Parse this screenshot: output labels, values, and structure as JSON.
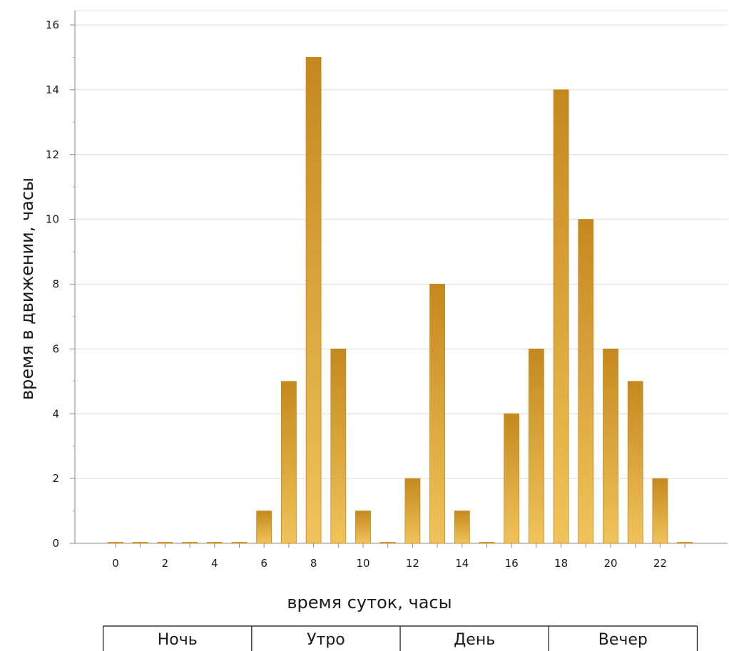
{
  "chart_data": {
    "type": "bar",
    "x": [
      0,
      1,
      2,
      3,
      4,
      5,
      6,
      7,
      8,
      9,
      10,
      11,
      12,
      13,
      14,
      15,
      16,
      17,
      18,
      19,
      20,
      21,
      22,
      23
    ],
    "values": [
      0,
      0,
      0,
      0,
      0,
      0,
      1,
      5,
      15,
      6,
      1,
      0,
      2,
      8,
      1,
      0,
      4,
      6,
      14,
      10,
      6,
      5,
      2,
      0
    ],
    "xlabel": "время суток, часы",
    "ylabel": "время в движении, часы",
    "ylim": [
      0,
      16
    ],
    "yticks": [
      0,
      2,
      4,
      6,
      8,
      10,
      12,
      14,
      16
    ],
    "xticks": [
      0,
      2,
      4,
      6,
      8,
      10,
      12,
      14,
      16,
      18,
      20,
      22
    ],
    "grid": true,
    "bar_color": "#d9a030",
    "bar_color_light": "#f0c35a",
    "bar_color_dark": "#c4891e",
    "periods": [
      {
        "label": "Ночь",
        "from": -0.5,
        "to": 5.5
      },
      {
        "label": "Утро",
        "from": 5.5,
        "to": 11.5
      },
      {
        "label": "День",
        "from": 11.5,
        "to": 17.5
      },
      {
        "label": "Вечер",
        "from": 17.5,
        "to": 23.5
      }
    ]
  }
}
